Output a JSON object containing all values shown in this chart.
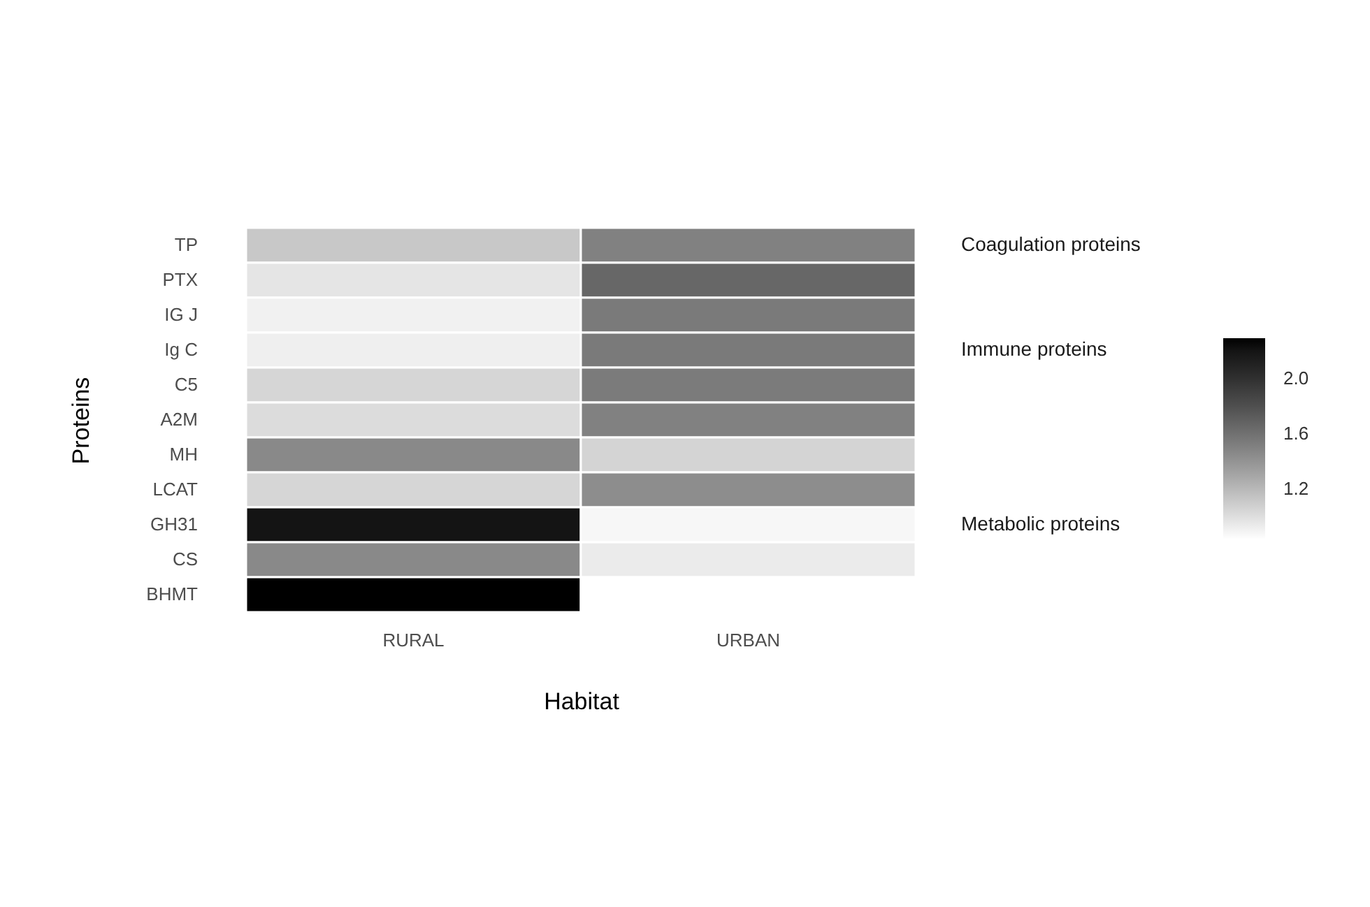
{
  "chart_data": {
    "type": "heatmap",
    "xlabel": "Habitat",
    "ylabel": "Proteins",
    "categories": [
      "RURAL",
      "URBAN"
    ],
    "y_categories": [
      "TP",
      "PTX",
      "IG J",
      "Ig C",
      "C5",
      "A2M",
      "MH",
      "LCAT",
      "GH31",
      "CS",
      "BHMT"
    ],
    "y2_categories": [
      "Coagulation proteins",
      null,
      null,
      "Immune proteins",
      null,
      null,
      null,
      null,
      "Metabolic proteins",
      null,
      null
    ],
    "cells": [
      [
        1.12,
        1.51
      ],
      [
        0.97,
        1.66
      ],
      [
        0.91,
        1.55
      ],
      [
        0.92,
        1.55
      ],
      [
        1.05,
        1.54
      ],
      [
        1.02,
        1.51
      ],
      [
        1.46,
        1.06
      ],
      [
        1.05,
        1.44
      ],
      [
        2.2,
        0.88
      ],
      [
        1.46,
        0.94
      ],
      [
        2.29,
        0.84
      ]
    ],
    "clim": [
      0.84,
      2.29
    ],
    "cticks": [
      1.2,
      1.6,
      {
        "value": 2,
        "label": "2.0"
      }
    ]
  }
}
